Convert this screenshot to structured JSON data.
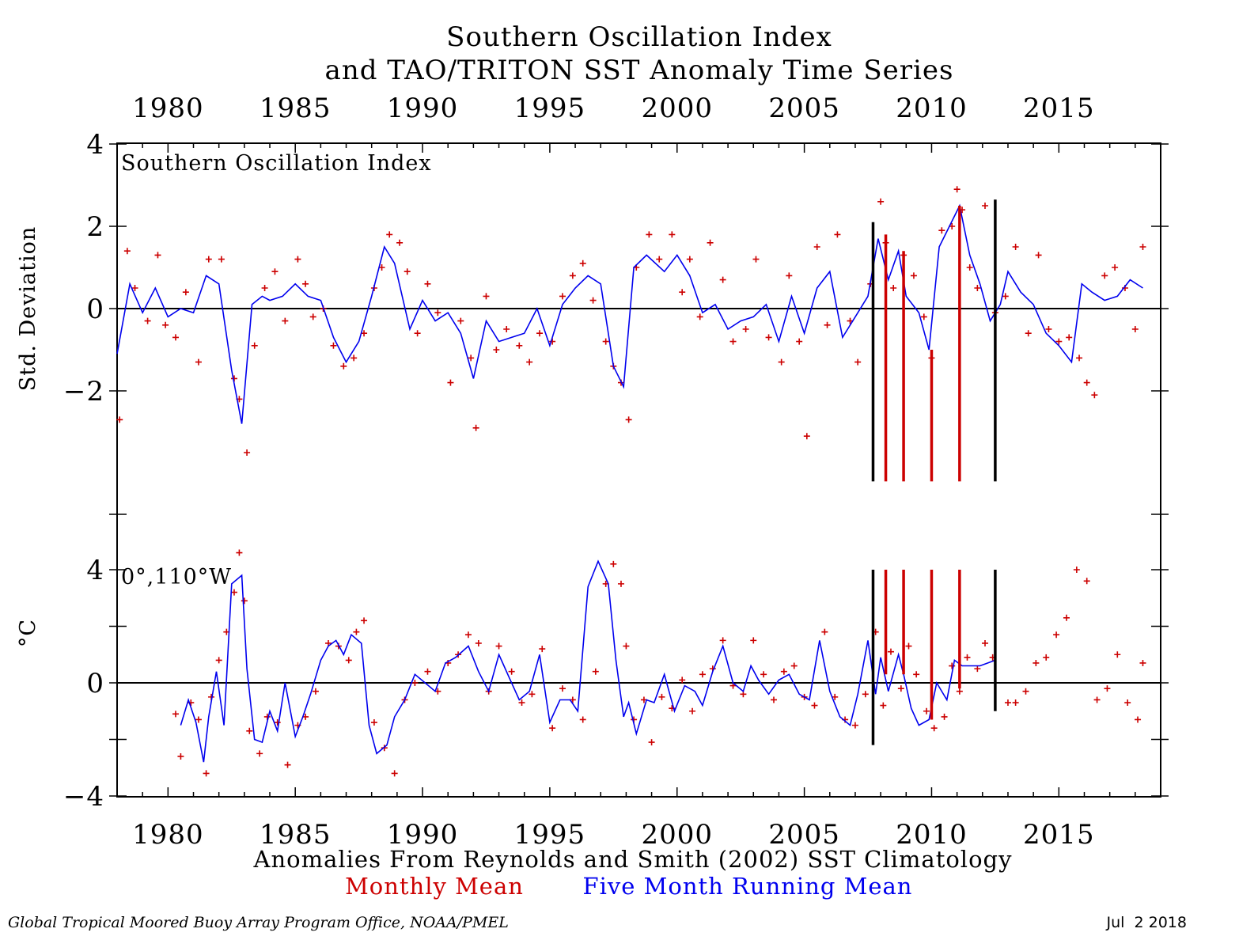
{
  "title_line1": "Southern Oscillation Index",
  "title_line2": "and TAO/TRITON SST Anomaly Time Series",
  "subtitle": "Anomalies From Reynolds and Smith (2002) SST Climatology",
  "legend": {
    "monthly": "Monthly Mean",
    "running": "Five Month Running Mean",
    "monthly_color": "#cc0000",
    "running_color": "#0000ee"
  },
  "footer": {
    "credit": "Global Tropical Moored Buoy Array Program Office, NOAA/PMEL",
    "date": "Jul  2 2018"
  },
  "x_tick_labels": [
    "1980",
    "1985",
    "1990",
    "1995",
    "2000",
    "2005",
    "2010",
    "2015"
  ],
  "chart_data": [
    {
      "type": "scatter",
      "panel": "top",
      "label": "Southern Oscillation Index",
      "ylabel": "Std. Deviation",
      "xlim": [
        1978.0,
        2019.0
      ],
      "ylim": [
        -4,
        4
      ],
      "ytick_labels": [
        "4",
        "2",
        "0",
        "−2"
      ],
      "yticks": [
        4,
        2,
        0,
        -2
      ],
      "x_ticks": [
        1980,
        1985,
        1990,
        1995,
        2000,
        2005,
        2010,
        2015
      ],
      "series": [
        {
          "name": "Five Month Running Mean",
          "style": "line",
          "x": [
            1978.0,
            1978.5,
            1979.0,
            1979.5,
            1980.0,
            1980.5,
            1981.0,
            1981.5,
            1982.0,
            1982.5,
            1982.9,
            1983.3,
            1983.7,
            1984.0,
            1984.5,
            1985.0,
            1985.5,
            1986.0,
            1986.5,
            1987.0,
            1987.5,
            1988.0,
            1988.5,
            1988.9,
            1989.5,
            1990.0,
            1990.5,
            1991.0,
            1991.5,
            1992.0,
            1992.5,
            1993.0,
            1993.5,
            1994.0,
            1994.5,
            1995.0,
            1995.5,
            1996.0,
            1996.5,
            1997.0,
            1997.5,
            1997.9,
            1998.3,
            1998.8,
            1999.5,
            2000.0,
            2000.5,
            2001.0,
            2001.5,
            2002.0,
            2002.5,
            2003.0,
            2003.5,
            2004.0,
            2004.5,
            2005.0,
            2005.5,
            2006.0,
            2006.5,
            2007.0,
            2007.5,
            2007.9,
            2008.3,
            2008.7,
            2009.0,
            2009.5,
            2009.9,
            2010.3,
            2010.7,
            2011.1,
            2011.5,
            2011.9,
            2012.3,
            2012.7,
            2013.0,
            2013.5,
            2014.0,
            2014.5,
            2015.0,
            2015.5,
            2015.9,
            2016.3,
            2016.8,
            2017.3,
            2017.8,
            2018.3
          ],
          "y": [
            -1.1,
            0.6,
            -0.1,
            0.5,
            -0.2,
            0.0,
            -0.1,
            0.8,
            0.6,
            -1.5,
            -2.8,
            0.1,
            0.3,
            0.2,
            0.3,
            0.6,
            0.3,
            0.2,
            -0.7,
            -1.3,
            -0.8,
            0.3,
            1.5,
            1.1,
            -0.5,
            0.2,
            -0.3,
            -0.1,
            -0.6,
            -1.7,
            -0.3,
            -0.8,
            -0.7,
            -0.6,
            0.0,
            -0.9,
            0.1,
            0.5,
            0.8,
            0.6,
            -1.4,
            -1.9,
            1.0,
            1.3,
            0.9,
            1.3,
            0.8,
            -0.1,
            0.1,
            -0.5,
            -0.3,
            -0.2,
            0.1,
            -0.8,
            0.3,
            -0.6,
            0.5,
            0.9,
            -0.7,
            -0.2,
            0.3,
            1.7,
            0.7,
            1.4,
            0.3,
            -0.1,
            -1.0,
            1.5,
            2.0,
            2.5,
            1.3,
            0.6,
            -0.3,
            0.1,
            0.9,
            0.4,
            0.1,
            -0.6,
            -0.9,
            -1.3,
            0.6,
            0.4,
            0.2,
            0.3,
            0.7,
            0.5
          ]
        },
        {
          "name": "Monthly Mean",
          "style": "markers",
          "x": [
            1978.1,
            1978.4,
            1978.7,
            1979.2,
            1979.6,
            1979.9,
            1980.3,
            1980.7,
            1981.2,
            1981.6,
            1982.1,
            1982.6,
            1982.8,
            1983.1,
            1983.4,
            1983.8,
            1984.2,
            1984.6,
            1985.1,
            1985.4,
            1985.7,
            1986.1,
            1986.5,
            1986.9,
            1987.3,
            1987.7,
            1988.1,
            1988.4,
            1988.7,
            1989.1,
            1989.4,
            1989.8,
            1990.2,
            1990.6,
            1991.1,
            1991.5,
            1991.9,
            1992.1,
            1992.5,
            1992.9,
            1993.3,
            1993.8,
            1994.2,
            1994.6,
            1995.1,
            1995.5,
            1995.9,
            1996.3,
            1996.7,
            1997.2,
            1997.5,
            1997.8,
            1998.1,
            1998.4,
            1998.9,
            1999.3,
            1999.8,
            2000.2,
            2000.5,
            2000.9,
            2001.3,
            2001.8,
            2002.2,
            2002.7,
            2003.1,
            2003.6,
            2004.1,
            2004.4,
            2004.8,
            2005.1,
            2005.5,
            2005.9,
            2006.3,
            2006.8,
            2007.1,
            2007.6,
            2008.0,
            2008.2,
            2008.5,
            2008.9,
            2009.3,
            2009.7,
            2010.0,
            2010.4,
            2010.8,
            2011.0,
            2011.2,
            2011.5,
            2011.8,
            2012.1,
            2012.5,
            2012.9,
            2013.3,
            2013.8,
            2014.2,
            2014.6,
            2015.0,
            2015.4,
            2015.8,
            2016.1,
            2016.4,
            2016.8,
            2017.2,
            2017.6,
            2018.0,
            2018.3
          ],
          "y": [
            -2.7,
            1.4,
            0.5,
            -0.3,
            1.3,
            -0.4,
            -0.7,
            0.4,
            -1.3,
            1.2,
            1.2,
            -1.7,
            -2.2,
            -3.5,
            -0.9,
            0.5,
            0.9,
            -0.3,
            1.2,
            0.6,
            -0.2,
            0.0,
            -0.9,
            -1.4,
            -1.2,
            -0.6,
            0.5,
            1.0,
            1.8,
            1.6,
            0.9,
            -0.6,
            0.6,
            -0.1,
            -1.8,
            -0.3,
            -1.2,
            -2.9,
            0.3,
            -1.0,
            -0.5,
            -0.9,
            -1.3,
            -0.6,
            -0.8,
            0.3,
            0.8,
            1.1,
            0.2,
            -0.8,
            -1.4,
            -1.8,
            -2.7,
            1.0,
            1.8,
            1.2,
            1.8,
            0.4,
            1.2,
            -0.2,
            1.6,
            0.7,
            -0.8,
            -0.5,
            1.2,
            -0.7,
            -1.3,
            0.8,
            -0.8,
            -3.1,
            1.5,
            -0.4,
            1.8,
            -0.3,
            -1.3,
            0.6,
            2.6,
            1.6,
            0.5,
            1.3,
            0.8,
            -0.2,
            -1.2,
            1.9,
            2.0,
            2.9,
            2.4,
            1.0,
            0.5,
            2.5,
            -0.1,
            0.3,
            1.5,
            -0.6,
            1.3,
            -0.5,
            -0.8,
            -0.7,
            -1.2,
            -1.8,
            -2.1,
            0.8,
            1.0,
            0.5,
            -0.5,
            1.5
          ]
        }
      ],
      "annotation_lines": [
        {
          "color": "#000000",
          "x": 2007.7,
          "y_top": 2.1,
          "y_bottom": -4.2
        },
        {
          "color": "#cc0000",
          "x": 2008.2,
          "y_top": 1.8,
          "y_bottom": -4.2
        },
        {
          "color": "#cc0000",
          "x": 2008.9,
          "y_top": 1.4,
          "y_bottom": -4.2
        },
        {
          "color": "#cc0000",
          "x": 2010.0,
          "y_top": -1.0,
          "y_bottom": -4.2
        },
        {
          "color": "#cc0000",
          "x": 2011.1,
          "y_top": 2.5,
          "y_bottom": -4.2
        },
        {
          "color": "#000000",
          "x": 2012.5,
          "y_top": 2.65,
          "y_bottom": -4.2
        }
      ]
    },
    {
      "type": "scatter",
      "panel": "bottom",
      "label": "0°,110°W",
      "ylabel": "°C",
      "xlim": [
        1978.0,
        2019.0
      ],
      "ylim": [
        -4,
        4
      ],
      "ytick_labels": [
        "4",
        "0",
        "−4"
      ],
      "yticks": [
        4,
        0,
        -4
      ],
      "x_ticks": [
        1980,
        1985,
        1990,
        1995,
        2000,
        2005,
        2010,
        2015
      ],
      "series": [
        {
          "name": "Five Month Running Mean",
          "style": "line",
          "x": [
            1980.5,
            1980.8,
            1981.1,
            1981.4,
            1981.6,
            1981.9,
            1982.2,
            1982.5,
            1982.9,
            1983.1,
            1983.4,
            1983.7,
            1984.0,
            1984.3,
            1984.6,
            1985.0,
            1985.3,
            1985.6,
            1986.0,
            1986.3,
            1986.6,
            1986.9,
            1987.2,
            1987.6,
            1987.9,
            1988.2,
            1988.6,
            1988.9,
            1989.3,
            1989.7,
            1990.1,
            1990.5,
            1990.9,
            1991.3,
            1991.8,
            1992.2,
            1992.6,
            1993.0,
            1993.4,
            1993.8,
            1994.2,
            1994.6,
            1995.0,
            1995.4,
            1995.8,
            1996.1,
            1996.5,
            1996.9,
            1997.3,
            1997.6,
            1997.9,
            1998.1,
            1998.4,
            1998.8,
            1999.1,
            1999.5,
            1999.9,
            2000.3,
            2000.7,
            2001.0,
            2001.4,
            2001.8,
            2002.2,
            2002.6,
            2002.9,
            2003.2,
            2003.6,
            2004.0,
            2004.4,
            2004.8,
            2005.2,
            2005.6,
            2006.0,
            2006.4,
            2006.8,
            2007.1,
            2007.5,
            2007.8,
            2008.0,
            2008.3,
            2008.7,
            2008.9,
            2009.2,
            2009.5,
            2009.9,
            2010.2,
            2010.6,
            2010.9,
            2011.2,
            2011.6,
            2011.9,
            2012.2,
            2012.5
          ],
          "y": [
            -1.5,
            -0.6,
            -1.4,
            -2.8,
            -1.2,
            0.4,
            -1.5,
            3.5,
            3.8,
            0.5,
            -2.0,
            -2.1,
            -1.0,
            -1.7,
            0.0,
            -1.9,
            -1.2,
            -0.4,
            0.8,
            1.3,
            1.5,
            1.0,
            1.7,
            1.4,
            -1.5,
            -2.5,
            -2.2,
            -1.2,
            -0.6,
            0.3,
            0.0,
            -0.3,
            0.7,
            0.9,
            1.3,
            0.4,
            -0.3,
            1.0,
            0.2,
            -0.6,
            -0.3,
            1.0,
            -1.4,
            -0.6,
            -0.6,
            -1.0,
            3.4,
            4.3,
            3.5,
            0.8,
            -1.2,
            -0.7,
            -1.8,
            -0.6,
            -0.7,
            0.3,
            -1.0,
            -0.1,
            -0.3,
            -0.8,
            0.4,
            1.3,
            0.0,
            -0.3,
            0.6,
            0.1,
            -0.4,
            0.1,
            0.3,
            -0.4,
            -0.6,
            1.5,
            -0.3,
            -1.2,
            -1.5,
            -0.4,
            1.5,
            -0.4,
            0.9,
            -0.3,
            1.0,
            0.3,
            -0.9,
            -1.5,
            -1.3,
            0.0,
            -0.6,
            0.8,
            0.6,
            0.6,
            0.6,
            0.7,
            0.8
          ]
        },
        {
          "name": "Monthly Mean",
          "style": "markers",
          "x": [
            1980.3,
            1980.5,
            1980.9,
            1981.2,
            1981.5,
            1981.7,
            1982.0,
            1982.3,
            1982.6,
            1982.8,
            1983.0,
            1983.2,
            1983.6,
            1983.9,
            1984.3,
            1984.7,
            1985.1,
            1985.4,
            1985.8,
            1986.3,
            1986.7,
            1987.1,
            1987.4,
            1987.7,
            1988.1,
            1988.5,
            1988.9,
            1989.3,
            1989.7,
            1990.2,
            1990.6,
            1991.0,
            1991.4,
            1991.8,
            1992.2,
            1992.6,
            1993.0,
            1993.5,
            1993.9,
            1994.3,
            1994.7,
            1995.1,
            1995.5,
            1995.9,
            1996.3,
            1996.8,
            1997.2,
            1997.5,
            1997.8,
            1998.0,
            1998.3,
            1998.7,
            1999.0,
            1999.4,
            1999.8,
            2000.2,
            2000.6,
            2001.0,
            2001.4,
            2001.8,
            2002.2,
            2002.6,
            2003.0,
            2003.4,
            2003.8,
            2004.2,
            2004.6,
            2005.0,
            2005.4,
            2005.8,
            2006.2,
            2006.6,
            2007.0,
            2007.4,
            2007.8,
            2008.1,
            2008.4,
            2008.8,
            2009.1,
            2009.4,
            2009.8,
            2010.1,
            2010.5,
            2010.8,
            2011.1,
            2011.4,
            2011.8,
            2012.1,
            2012.4,
            2013.0,
            2013.3,
            2013.7,
            2014.1,
            2014.5,
            2014.9,
            2015.3,
            2015.7,
            2016.1,
            2016.5,
            2016.9,
            2017.3,
            2017.7,
            2018.1,
            2018.3
          ],
          "y": [
            -1.1,
            -2.6,
            -0.7,
            -1.3,
            -3.2,
            -0.5,
            0.8,
            1.8,
            3.2,
            4.6,
            2.9,
            -1.7,
            -2.5,
            -1.2,
            -1.4,
            -2.9,
            -1.5,
            -1.2,
            -0.3,
            1.4,
            1.3,
            0.8,
            1.8,
            2.2,
            -1.4,
            -2.3,
            -3.2,
            -0.6,
            0.0,
            0.4,
            -0.3,
            0.7,
            1.0,
            1.7,
            1.4,
            -0.3,
            1.3,
            0.4,
            -0.7,
            -0.4,
            1.2,
            -1.6,
            -0.2,
            -0.6,
            -1.3,
            0.4,
            3.5,
            4.2,
            3.5,
            1.3,
            -1.3,
            -0.6,
            -2.1,
            -0.5,
            -0.9,
            0.1,
            -1.0,
            0.3,
            0.5,
            1.5,
            -0.1,
            -0.4,
            1.5,
            0.3,
            -0.6,
            0.4,
            0.6,
            -0.5,
            -0.8,
            1.8,
            -0.5,
            -1.3,
            -1.5,
            -0.4,
            1.8,
            -0.8,
            1.1,
            -0.2,
            1.3,
            0.3,
            -1.0,
            -1.6,
            -1.2,
            0.6,
            -0.3,
            0.9,
            0.5,
            1.4,
            0.9,
            -0.7,
            -0.7,
            -0.3,
            0.7,
            0.9,
            1.7,
            2.3,
            4.0,
            3.6,
            -0.6,
            -0.2,
            1.0,
            -0.7,
            -1.3,
            0.7
          ]
        }
      ],
      "annotation_lines": [
        {
          "color": "#000000",
          "x": 2007.7,
          "y_top": 4.0,
          "y_bottom": -2.2
        },
        {
          "color": "#cc0000",
          "x": 2008.2,
          "y_top": 4.0,
          "y_bottom": 0.3
        },
        {
          "color": "#cc0000",
          "x": 2008.9,
          "y_top": 4.0,
          "y_bottom": 0.3
        },
        {
          "color": "#cc0000",
          "x": 2010.0,
          "y_top": 4.0,
          "y_bottom": -1.3
        },
        {
          "color": "#cc0000",
          "x": 2011.1,
          "y_top": 4.0,
          "y_bottom": -0.2
        },
        {
          "color": "#000000",
          "x": 2012.5,
          "y_top": 4.0,
          "y_bottom": -1.0
        }
      ]
    }
  ]
}
